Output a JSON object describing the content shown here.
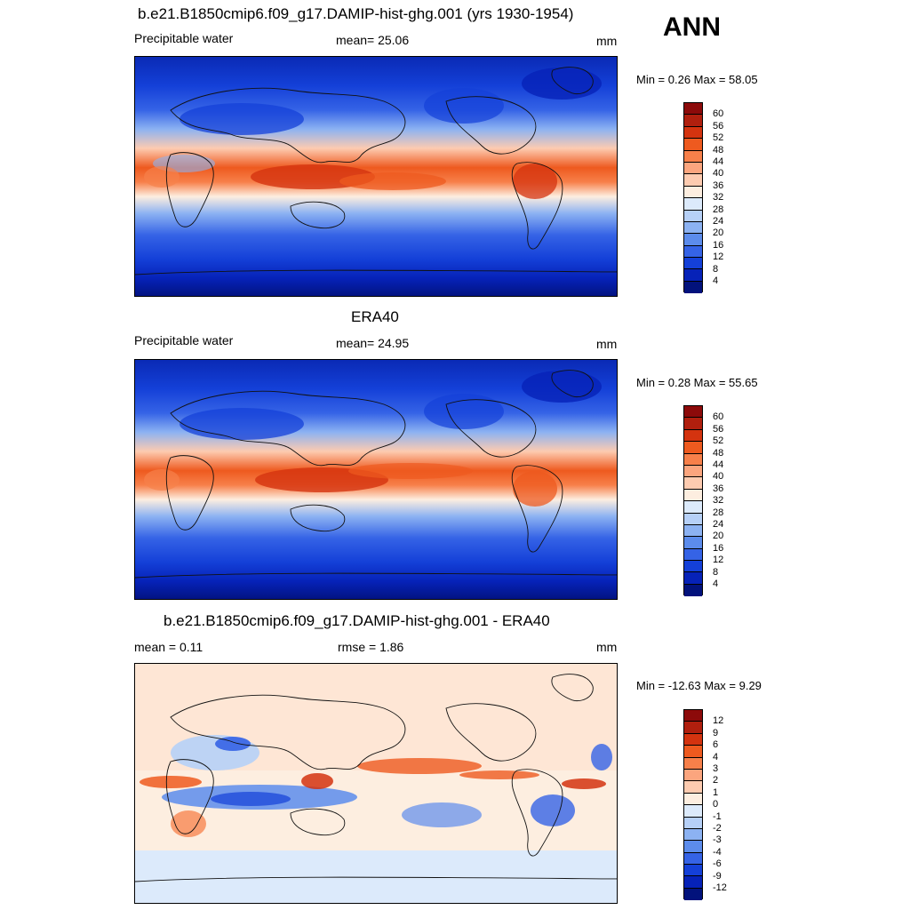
{
  "header": {
    "season": "ANN"
  },
  "panels": [
    {
      "title": "b.e21.B1850cmip6.f09_g17.DAMIP-hist-ghg.001 (yrs 1930-1954)",
      "left_label": "Precipitable water",
      "center_label": "mean=  25.06",
      "units": "mm",
      "minmax": "Min =   0.26 Max =  58.05",
      "colorbar": {
        "labels": [
          "60",
          "56",
          "52",
          "48",
          "44",
          "40",
          "36",
          "32",
          "28",
          "24",
          "20",
          "16",
          "12",
          "8",
          "4"
        ],
        "colors": [
          "#8c0a0a",
          "#b01f0e",
          "#d4330f",
          "#ee5a1f",
          "#f7804a",
          "#fba57e",
          "#fdcbb0",
          "#fdeee0",
          "#dceafb",
          "#b6d0f7",
          "#8cb2f2",
          "#5c8cec",
          "#3563e6",
          "#1440d8",
          "#0622b8",
          "#02127c"
        ]
      }
    },
    {
      "title": "ERA40",
      "left_label": "Precipitable water",
      "center_label": "mean=  24.95",
      "units": "mm",
      "minmax": "Min =   0.28 Max =  55.65",
      "colorbar": {
        "labels": [
          "60",
          "56",
          "52",
          "48",
          "44",
          "40",
          "36",
          "32",
          "28",
          "24",
          "20",
          "16",
          "12",
          "8",
          "4"
        ],
        "colors": [
          "#8c0a0a",
          "#b01f0e",
          "#d4330f",
          "#ee5a1f",
          "#f7804a",
          "#fba57e",
          "#fdcbb0",
          "#fdeee0",
          "#dceafb",
          "#b6d0f7",
          "#8cb2f2",
          "#5c8cec",
          "#3563e6",
          "#1440d8",
          "#0622b8",
          "#02127c"
        ]
      }
    },
    {
      "title": "b.e21.B1850cmip6.f09_g17.DAMIP-hist-ghg.001 - ERA40",
      "left_label": "mean =   0.11",
      "center_label": "rmse =   1.86",
      "units": "mm",
      "minmax": "Min = -12.63 Max =   9.29",
      "colorbar": {
        "labels": [
          "12",
          "9",
          "6",
          "4",
          "3",
          "2",
          "1",
          "0",
          "-1",
          "-2",
          "-3",
          "-4",
          "-6",
          "-9",
          "-12"
        ],
        "colors": [
          "#8c0a0a",
          "#b01f0e",
          "#d4330f",
          "#ee5a1f",
          "#f7804a",
          "#fba57e",
          "#fdcbb0",
          "#fdeee0",
          "#dceafb",
          "#b6d0f7",
          "#8cb2f2",
          "#5c8cec",
          "#3563e6",
          "#1440d8",
          "#0622b8",
          "#02127c"
        ]
      }
    }
  ]
}
